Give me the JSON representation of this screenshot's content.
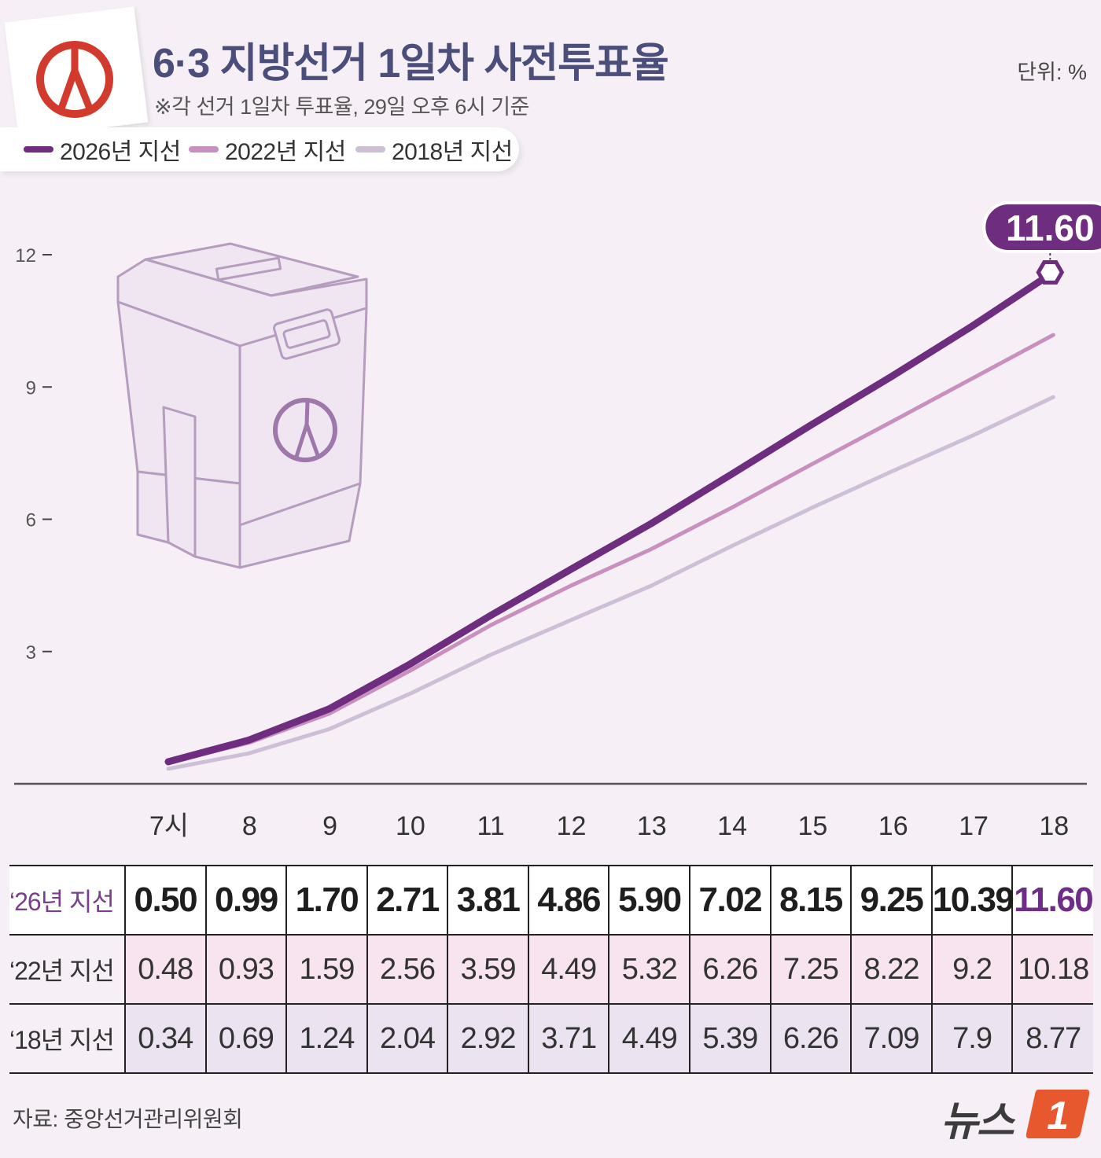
{
  "header": {
    "title": "6·3 지방선거 1일차 사전투표율",
    "subtitle": "※각 선거 1일차 투표율, 29일 오후 6시 기준",
    "unit": "단위: %"
  },
  "colors": {
    "s2026": "#6e2d7e",
    "s2022": "#c98fbe",
    "s2018": "#cdbfd6",
    "logo_red": "#d23a2e"
  },
  "legend": [
    "2026년 지선",
    "2022년 지선",
    "2018년 지선"
  ],
  "callout": "11.60",
  "chart_data": {
    "type": "line",
    "x": [
      "7시",
      "8",
      "9",
      "10",
      "11",
      "12",
      "13",
      "14",
      "15",
      "16",
      "17",
      "18"
    ],
    "yticks": [
      3,
      6,
      9,
      12
    ],
    "ylim": [
      0,
      12
    ],
    "series": [
      {
        "name": "2026년 지선",
        "values": [
          0.5,
          0.99,
          1.7,
          2.71,
          3.81,
          4.86,
          5.9,
          7.02,
          8.15,
          9.25,
          10.39,
          11.6
        ]
      },
      {
        "name": "2022년 지선",
        "values": [
          0.48,
          0.93,
          1.59,
          2.56,
          3.59,
          4.49,
          5.32,
          6.26,
          7.25,
          8.22,
          9.2,
          10.18
        ]
      },
      {
        "name": "2018년 지선",
        "values": [
          0.34,
          0.69,
          1.24,
          2.04,
          2.92,
          3.71,
          4.49,
          5.39,
          6.26,
          7.09,
          7.9,
          8.77
        ]
      }
    ]
  },
  "table": {
    "rows": [
      {
        "label": "‘26년 지선",
        "values": [
          "0.50",
          "0.99",
          "1.70",
          "2.71",
          "3.81",
          "4.86",
          "5.90",
          "7.02",
          "8.15",
          "9.25",
          "10.39",
          "11.60"
        ]
      },
      {
        "label": "‘22년 지선",
        "values": [
          "0.48",
          "0.93",
          "1.59",
          "2.56",
          "3.59",
          "4.49",
          "5.32",
          "6.26",
          "7.25",
          "8.22",
          "9.2",
          "10.18"
        ]
      },
      {
        "label": "‘18년 지선",
        "values": [
          "0.34",
          "0.69",
          "1.24",
          "2.04",
          "2.92",
          "3.71",
          "4.49",
          "5.39",
          "6.26",
          "7.09",
          "7.9",
          "8.77"
        ]
      }
    ]
  },
  "footer": {
    "source": "자료: 중앙선거관리위원회",
    "brand": "뉴스",
    "brand_mark": "1"
  }
}
